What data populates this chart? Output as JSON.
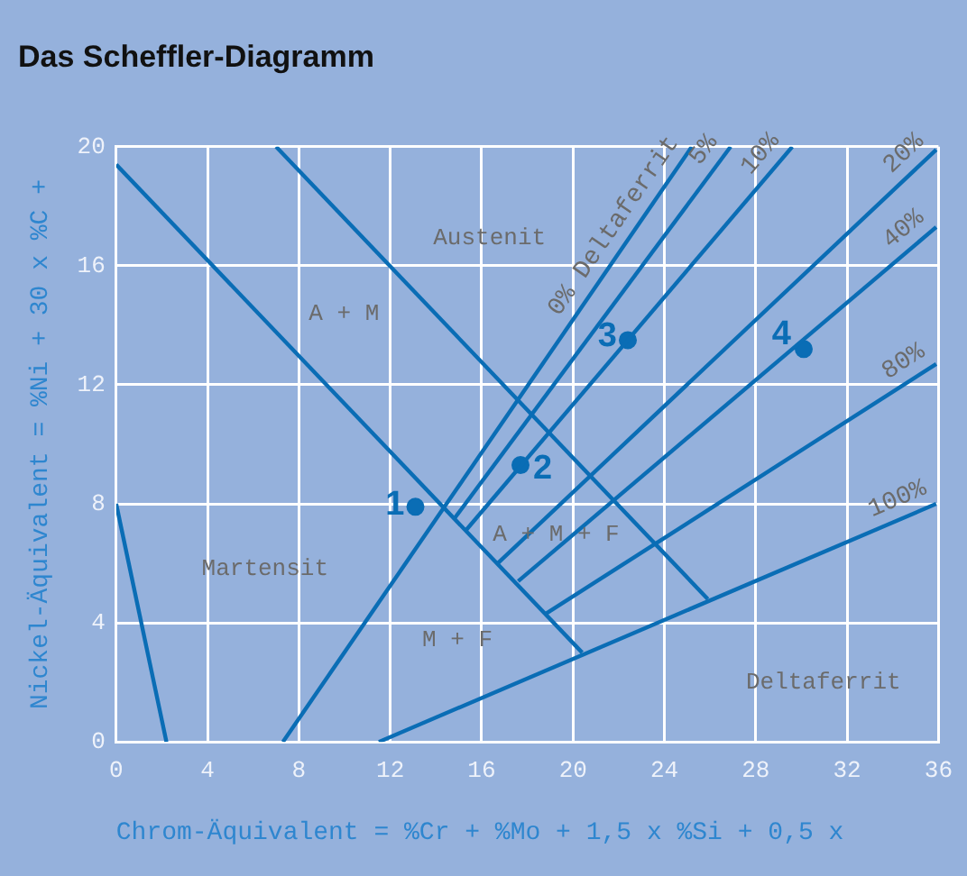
{
  "chart_data": {
    "type": "line",
    "title": "Das Scheffler-Diagramm",
    "xlabel": "Chrom-Äquivalent = %Cr + %Mo + 1,5 x %Si + 0,5 x",
    "ylabel": "Nickel-Äquivalent = %Ni + 30 x %C +",
    "xlim": [
      0,
      36
    ],
    "xticks": [
      0,
      4,
      8,
      12,
      16,
      20,
      24,
      28,
      32,
      36
    ],
    "ylim": [
      0,
      20
    ],
    "yticks": [
      0,
      4,
      8,
      12,
      16,
      20
    ],
    "grid": true,
    "legend": false,
    "marker": "none",
    "series": [
      {
        "color": "#0a6db5",
        "x": [
          0,
          2.2
        ],
        "values": [
          8.0,
          0
        ]
      },
      {
        "color": "#0a6db5",
        "x": [
          0,
          20.4
        ],
        "values": [
          19.4,
          3.0
        ]
      },
      {
        "color": "#0a6db5",
        "x": [
          7.0,
          25.9
        ],
        "values": [
          20,
          4.8
        ]
      },
      {
        "name": "0% Deltaferrit",
        "color": "#0a6db5",
        "x": [
          7.3,
          25.2
        ],
        "values": [
          0,
          20
        ]
      },
      {
        "name": "5%",
        "color": "#0a6db5",
        "x": [
          14.8,
          26.9
        ],
        "values": [
          7.5,
          20
        ]
      },
      {
        "name": "10%",
        "color": "#0a6db5",
        "x": [
          15.3,
          29.6
        ],
        "values": [
          7.1,
          20
        ]
      },
      {
        "name": "20%",
        "color": "#0a6db5",
        "x": [
          16.7,
          35.9
        ],
        "values": [
          6.0,
          19.9
        ]
      },
      {
        "name": "40%",
        "color": "#0a6db5",
        "x": [
          17.6,
          35.9
        ],
        "values": [
          5.4,
          17.3
        ]
      },
      {
        "name": "80%",
        "color": "#0a6db5",
        "x": [
          18.8,
          35.9
        ],
        "values": [
          4.3,
          12.7
        ]
      },
      {
        "name": "100%",
        "color": "#0a6db5",
        "x": [
          11.5,
          35.9
        ],
        "values": [
          0,
          8.0
        ]
      },
      {
        "type": "scatter",
        "marker": "circle",
        "color": "#0a6db5",
        "x": [
          13.1,
          17.7,
          22.4,
          30.1
        ],
        "values": [
          7.9,
          9.3,
          13.5,
          13.2
        ]
      }
    ],
    "annotations": [
      "Austenit",
      "A + M",
      "Martensit",
      "M + F",
      "A + M + F",
      "Deltaferrit",
      {
        "text": "1",
        "x": 13.1,
        "y": 7.9
      },
      {
        "text": "2",
        "x": 17.7,
        "y": 9.3
      },
      {
        "text": "3",
        "x": 22.4,
        "y": 13.5
      },
      {
        "text": "4",
        "x": 30.1,
        "y": 13.2
      }
    ]
  }
}
